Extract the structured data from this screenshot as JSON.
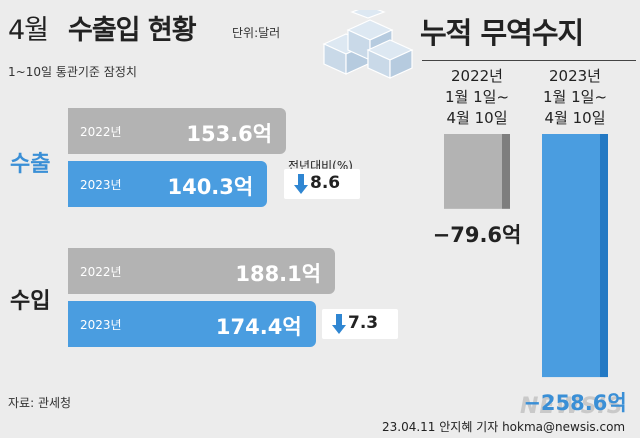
{
  "title_month": "4월",
  "title_main": "수출입 현황",
  "unit": "단위:달러",
  "basis": "1~10일 통관기준 잠정치",
  "change_caption": "전년대비(%)",
  "right_title": "누적 무역수지",
  "source": "자료: 관세청",
  "byline": "23.04.11 안지혜 기자 hokma@newsis.com",
  "brand": "NEWSIS",
  "colors": {
    "gray_bar": "#b3b3b3",
    "gray_bar_dark": "#7e7e7e",
    "blue_bar": "#4a9de0",
    "blue_bar_dark": "#2379c4",
    "blue_text": "#3a8fd6",
    "down_arrow": "#2f86d2",
    "background": "#ececec"
  },
  "chart_data": [
    {
      "type": "bar",
      "orientation": "horizontal",
      "groups": [
        {
          "label": "수출",
          "label_color": "#3a8fd6",
          "bars": [
            {
              "year": "2022년",
              "value": 153.6,
              "label": "153.6억"
            },
            {
              "year": "2023년",
              "value": 140.3,
              "label": "140.3억"
            }
          ],
          "change": {
            "direction": "down",
            "value": 8.6,
            "label": "8.6",
            "icon": "down-arrow-icon"
          }
        },
        {
          "label": "수입",
          "label_color": "#222222",
          "bars": [
            {
              "year": "2022년",
              "value": 188.1,
              "label": "188.1억"
            },
            {
              "year": "2023년",
              "value": 174.4,
              "label": "174.4억"
            }
          ],
          "change": {
            "direction": "down",
            "value": 7.3,
            "label": "7.3",
            "icon": "down-arrow-icon"
          }
        }
      ]
    },
    {
      "type": "bar",
      "orientation": "vertical",
      "title": "누적 무역수지",
      "categories": [
        [
          "2022년",
          "1월 1일~",
          "4월 10일"
        ],
        [
          "2023년",
          "1월 1일~",
          "4월 10일"
        ]
      ],
      "values": [
        -79.6,
        -258.6
      ],
      "labels": [
        "−79.6억",
        "−258.6억"
      ]
    }
  ]
}
